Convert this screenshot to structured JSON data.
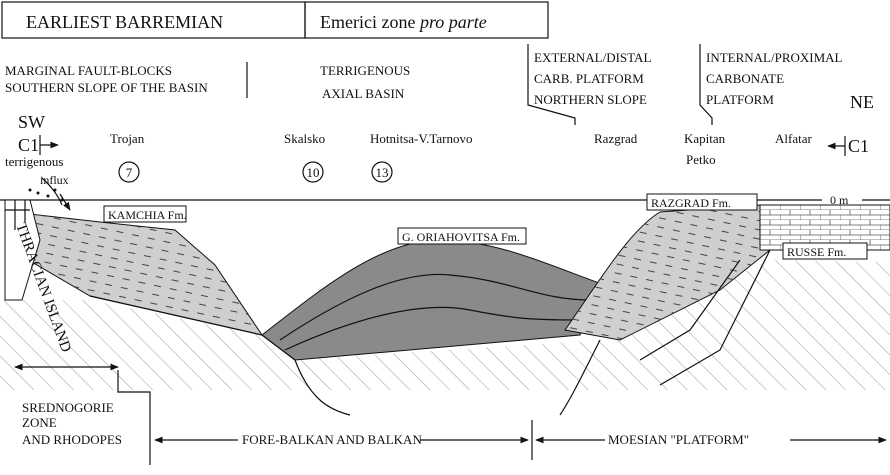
{
  "header": {
    "stage": "EARLIEST BARREMIAN",
    "zone": "Emerici zone",
    "zone_qualifier": "pro parte"
  },
  "regions": {
    "marginal": [
      "MARGINAL FAULT-BLOCKS",
      "SOUTHERN SLOPE OF THE BASIN"
    ],
    "axial": [
      "TERRIGENOUS",
      "AXIAL BASIN"
    ],
    "external": [
      "EXTERNAL/DISTAL",
      "CARB. PLATFORM",
      "NORTHERN SLOPE"
    ],
    "internal": [
      "INTERNAL/PROXIMAL",
      "CARBONATE",
      "PLATFORM"
    ]
  },
  "orientation": {
    "left": "SW",
    "right": "NE",
    "section_left": "C1",
    "section_right": "C1"
  },
  "localities": [
    {
      "name": "Trojan",
      "number": "7"
    },
    {
      "name": "Skalsko",
      "number": "10"
    },
    {
      "name": "Hotnitsa-V.Tarnovo",
      "number": "13"
    },
    {
      "name": "Razgrad"
    },
    {
      "name": "Kapitan",
      "name2": "Petko"
    },
    {
      "name": "Alfatar"
    }
  ],
  "annotations": {
    "influx_1": "terrigenous",
    "influx_2": "influx",
    "sea_level": "0 m",
    "island": "THRACIAN ISLAND"
  },
  "formations": [
    "KAMCHIA Fm.",
    "G. ORIAHOVITSA Fm.",
    "RAZGRAD Fm.",
    "RUSSE Fm."
  ],
  "zones": {
    "srednogorie": [
      "SREDNOGORIE",
      "ZONE",
      "AND RHODOPES"
    ],
    "forebalkan": "FORE-BALKAN AND BALKAN",
    "moesian": "MOESIAN \"PLATFORM\""
  }
}
